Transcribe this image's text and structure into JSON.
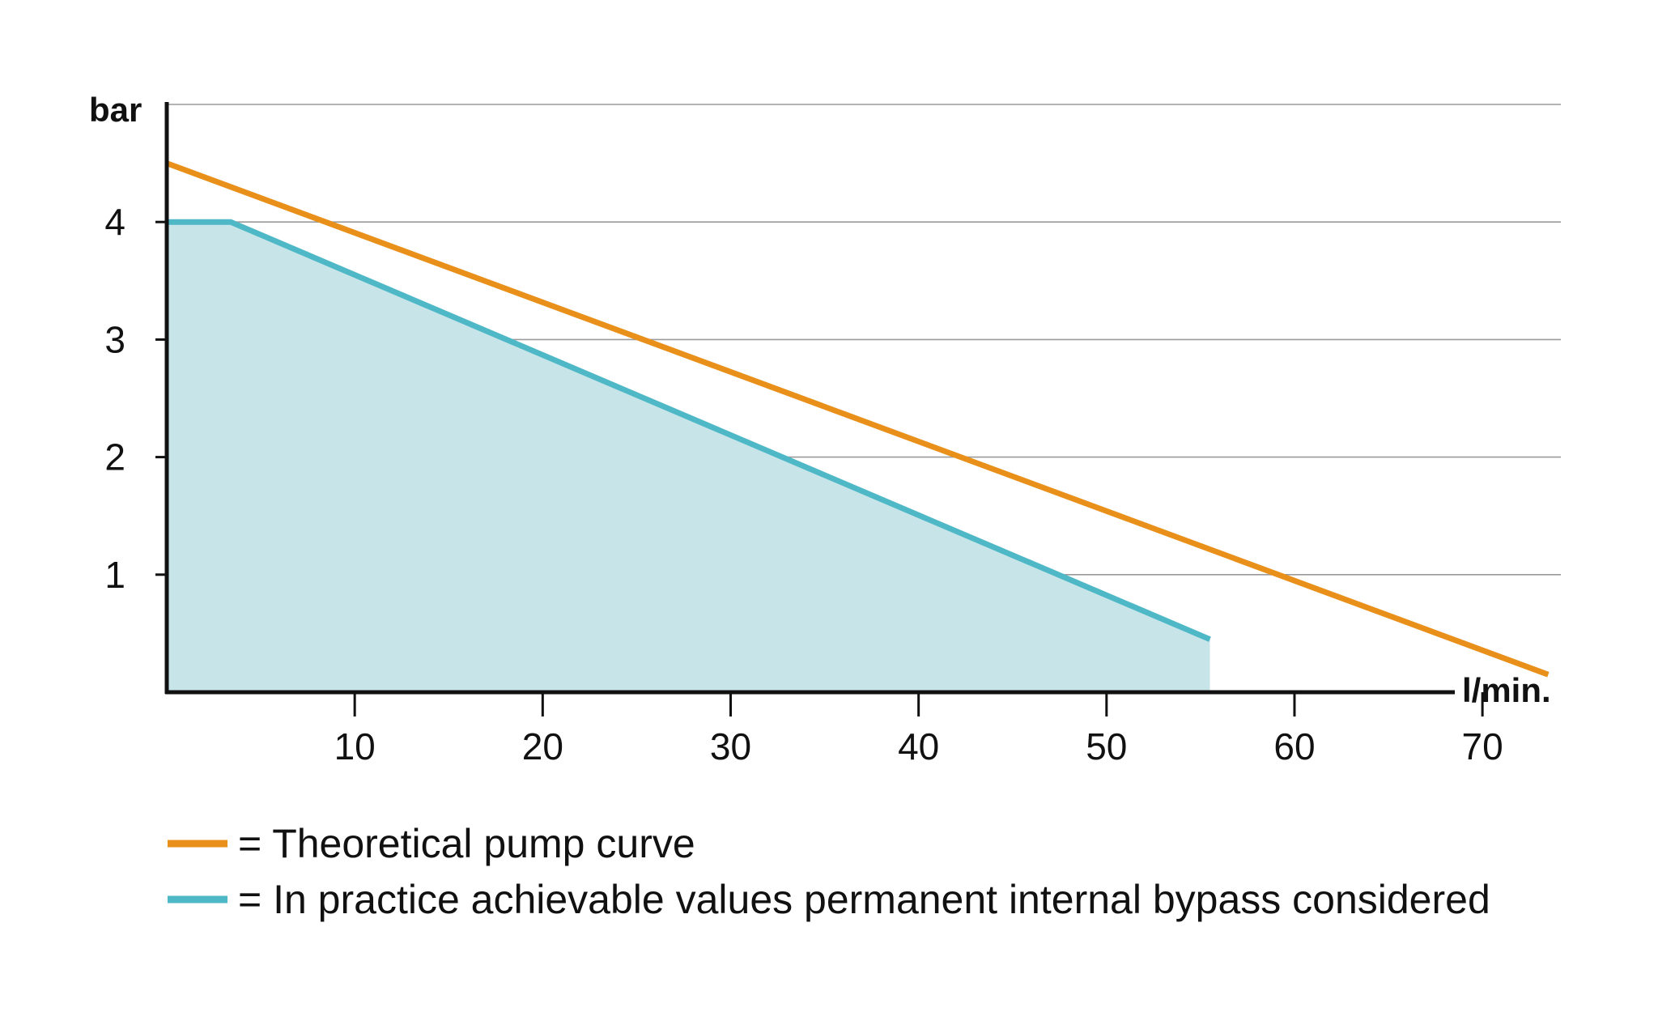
{
  "chart_data": {
    "type": "line",
    "xlabel": "l/min.",
    "ylabel": "bar",
    "xlim": [
      0,
      74
    ],
    "ylim": [
      0,
      5
    ],
    "x_ticks": [
      10,
      20,
      30,
      40,
      50,
      60,
      70
    ],
    "y_ticks": [
      1,
      2,
      3,
      4
    ],
    "grid": true,
    "series": [
      {
        "name": "= Theoretical pump curve",
        "color": "#e8901a",
        "fill": false,
        "points": [
          [
            0,
            4.5
          ],
          [
            73.5,
            0.15
          ]
        ]
      },
      {
        "name": "= In practice achievable values permanent internal bypass considered",
        "color": "#4fb8c6",
        "fill": true,
        "fill_color": "#c7e5e9",
        "points": [
          [
            0,
            4.0
          ],
          [
            3.4,
            4.0
          ],
          [
            55.5,
            0.45
          ]
        ]
      }
    ],
    "legend_position": "bottom-left"
  }
}
